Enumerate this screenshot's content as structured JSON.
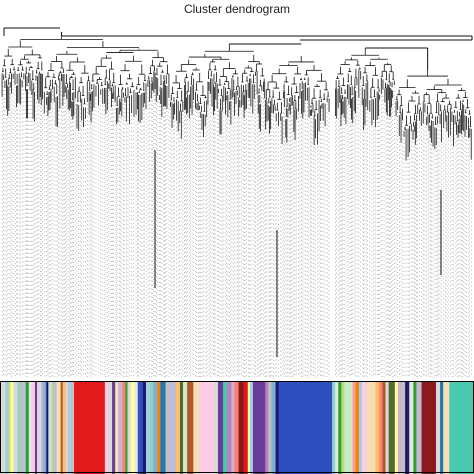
{
  "title": "Cluster dendrogram",
  "colors": {
    "tree": "#111111",
    "leader": "#8a8a8a",
    "border": "#000000"
  },
  "module_palette": [
    "#d9d9d9",
    "#a6cee3",
    "#1f78b4",
    "#e6e6e6",
    "#b2df8a",
    "#33a02c",
    "#fb9a99",
    "#e31a1c",
    "#fdbf6f",
    "#ff7f00",
    "#cab2d6",
    "#6a3d9a",
    "#ffff99",
    "#b15928",
    "#8dd3c7",
    "#bebada",
    "#fb8072",
    "#80b1d3",
    "#fccde5",
    "#bc80bd",
    "#ccebc5",
    "#2f4fbf",
    "#1a1a6e",
    "#8b1a1a",
    "#48c9b0",
    "#556b2f",
    "#c0c0c0",
    "#f5deb3"
  ],
  "module_blocks": [
    {
      "c": 0,
      "w": 5
    },
    {
      "c": 1,
      "w": 3
    },
    {
      "c": 4,
      "w": 2
    },
    {
      "c": 12,
      "w": 3
    },
    {
      "c": 0,
      "w": 4
    },
    {
      "c": 14,
      "w": 2
    },
    {
      "c": 26,
      "w": 4
    },
    {
      "c": 1,
      "w": 2
    },
    {
      "c": 5,
      "w": 3
    },
    {
      "c": 3,
      "w": 3
    },
    {
      "c": 18,
      "w": 3
    },
    {
      "c": 11,
      "w": 2
    },
    {
      "c": 0,
      "w": 4
    },
    {
      "c": 10,
      "w": 2
    },
    {
      "c": 17,
      "w": 3
    },
    {
      "c": 22,
      "w": 2
    },
    {
      "c": 0,
      "w": 3
    },
    {
      "c": 4,
      "w": 2
    },
    {
      "c": 15,
      "w": 3
    },
    {
      "c": 27,
      "w": 4
    },
    {
      "c": 13,
      "w": 2
    },
    {
      "c": 8,
      "w": 3
    },
    {
      "c": 0,
      "w": 2
    },
    {
      "c": 1,
      "w": 3
    },
    {
      "c": 26,
      "w": 3
    },
    {
      "c": 7,
      "w": 30
    },
    {
      "c": 18,
      "w": 3
    },
    {
      "c": 0,
      "w": 4
    },
    {
      "c": 11,
      "w": 3
    },
    {
      "c": 27,
      "w": 3
    },
    {
      "c": 10,
      "w": 4
    },
    {
      "c": 16,
      "w": 3
    },
    {
      "c": 5,
      "w": 2
    },
    {
      "c": 0,
      "w": 3
    },
    {
      "c": 12,
      "w": 4
    },
    {
      "c": 3,
      "w": 3
    },
    {
      "c": 21,
      "w": 5
    },
    {
      "c": 22,
      "w": 3
    },
    {
      "c": 1,
      "w": 4
    },
    {
      "c": 14,
      "w": 3
    },
    {
      "c": 17,
      "w": 4
    },
    {
      "c": 9,
      "w": 3
    },
    {
      "c": 2,
      "w": 5
    },
    {
      "c": 26,
      "w": 4
    },
    {
      "c": 15,
      "w": 6
    },
    {
      "c": 8,
      "w": 4
    },
    {
      "c": 25,
      "w": 3
    },
    {
      "c": 20,
      "w": 4
    },
    {
      "c": 13,
      "w": 6
    },
    {
      "c": 27,
      "w": 6
    },
    {
      "c": 18,
      "w": 14
    },
    {
      "c": 0,
      "w": 4
    },
    {
      "c": 11,
      "w": 5
    },
    {
      "c": 24,
      "w": 4
    },
    {
      "c": 19,
      "w": 4
    },
    {
      "c": 10,
      "w": 3
    },
    {
      "c": 16,
      "w": 4
    },
    {
      "c": 23,
      "w": 5
    },
    {
      "c": 7,
      "w": 4
    },
    {
      "c": 12,
      "w": 2
    },
    {
      "c": 1,
      "w": 3
    },
    {
      "c": 11,
      "w": 12
    },
    {
      "c": 19,
      "w": 3
    },
    {
      "c": 26,
      "w": 3
    },
    {
      "c": 17,
      "w": 4
    },
    {
      "c": 22,
      "w": 3
    },
    {
      "c": 21,
      "w": 52
    },
    {
      "c": 14,
      "w": 3
    },
    {
      "c": 3,
      "w": 3
    },
    {
      "c": 5,
      "w": 3
    },
    {
      "c": 4,
      "w": 3
    },
    {
      "c": 20,
      "w": 8
    },
    {
      "c": 6,
      "w": 3
    },
    {
      "c": 9,
      "w": 3
    },
    {
      "c": 1,
      "w": 3
    },
    {
      "c": 18,
      "w": 5
    },
    {
      "c": 27,
      "w": 8
    },
    {
      "c": 8,
      "w": 4
    },
    {
      "c": 16,
      "w": 3
    },
    {
      "c": 13,
      "w": 3
    },
    {
      "c": 0,
      "w": 3
    },
    {
      "c": 25,
      "w": 6
    },
    {
      "c": 12,
      "w": 3
    },
    {
      "c": 10,
      "w": 3
    },
    {
      "c": 26,
      "w": 4
    },
    {
      "c": 22,
      "w": 4
    },
    {
      "c": 3,
      "w": 4
    },
    {
      "c": 5,
      "w": 3
    },
    {
      "c": 15,
      "w": 5
    },
    {
      "c": 23,
      "w": 14
    },
    {
      "c": 0,
      "w": 4
    },
    {
      "c": 2,
      "w": 3
    },
    {
      "c": 27,
      "w": 6
    },
    {
      "c": 24,
      "w": 24
    }
  ]
}
